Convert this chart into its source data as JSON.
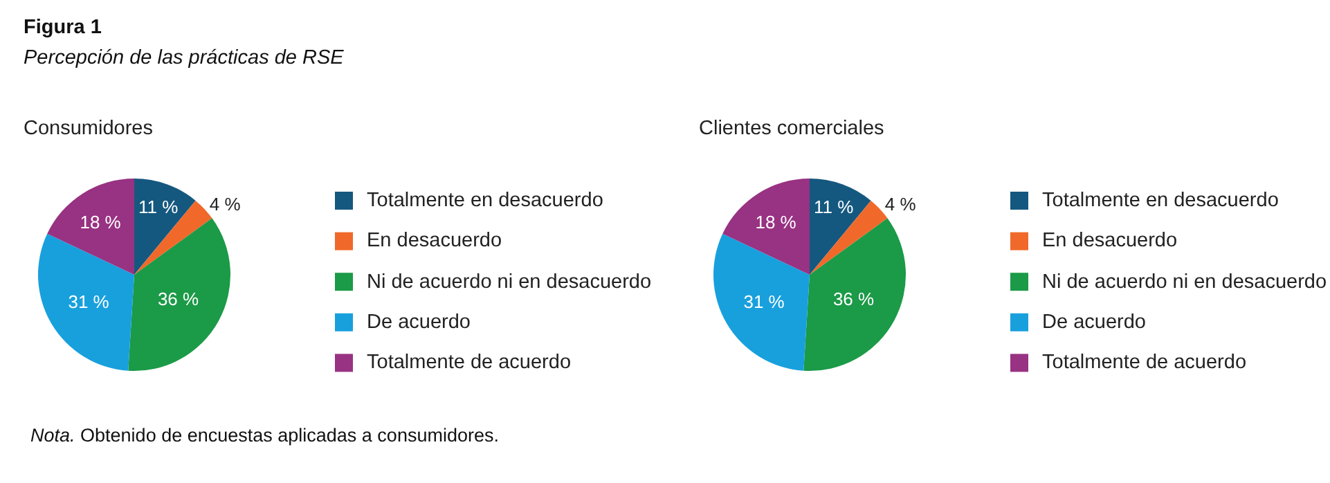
{
  "chart_data": [
    {
      "type": "pie",
      "title": "Consumidores",
      "annotations": [
        "Figura 1",
        "Percepción de las prácticas de RSE",
        "Nota. Obtenido de encuestas aplicadas a consumidores."
      ],
      "categories": [
        "Totalmente en desacuerdo",
        "En desacuerdo",
        "Ni de acuerdo ni en desacuerdo",
        "De acuerdo",
        "Totalmente de acuerdo"
      ],
      "values": [
        11,
        4,
        36,
        31,
        18
      ],
      "value_labels": [
        "11 %",
        "4 %",
        "36 %",
        "31 %",
        "18 %"
      ],
      "colors": [
        "#15587f",
        "#f0692a",
        "#1b9a47",
        "#18a0dd",
        "#983282"
      ],
      "legend": "right"
    },
    {
      "type": "pie",
      "title": "Clientes comerciales",
      "categories": [
        "Totalmente en desacuerdo",
        "En desacuerdo",
        "Ni de acuerdo ni en desacuerdo",
        "De acuerdo",
        "Totalmente de acuerdo"
      ],
      "values": [
        11,
        4,
        36,
        31,
        18
      ],
      "value_labels": [
        "11 %",
        "4 %",
        "36 %",
        "31 %",
        "18 %"
      ],
      "colors": [
        "#15587f",
        "#f0692a",
        "#1b9a47",
        "#18a0dd",
        "#983282"
      ],
      "legend": "right"
    }
  ]
}
